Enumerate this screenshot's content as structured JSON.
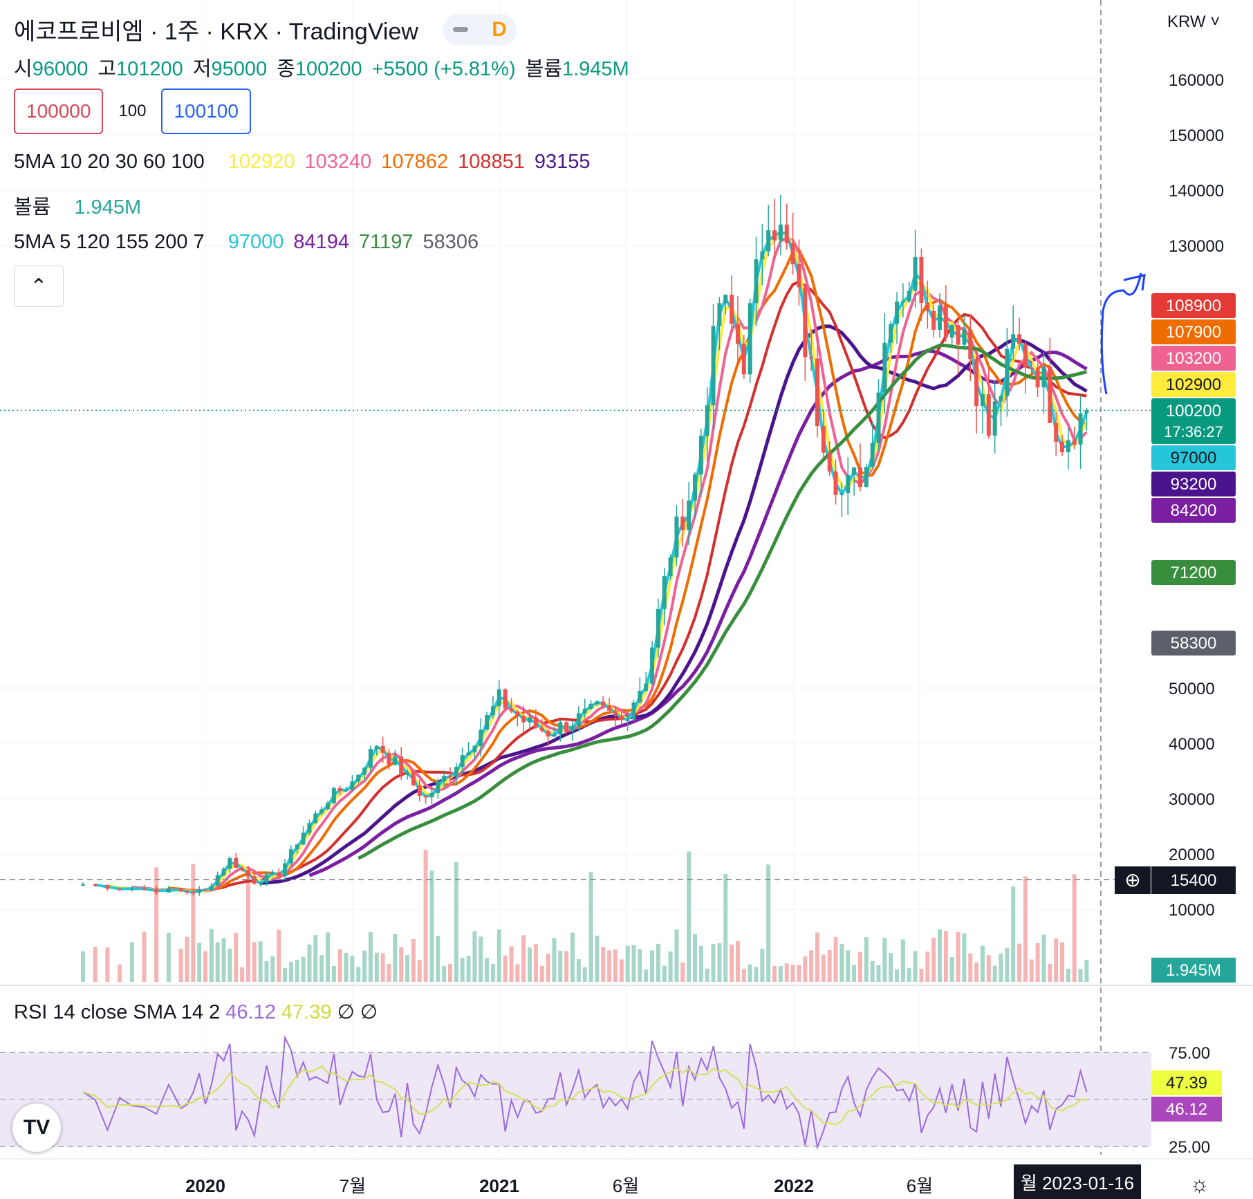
{
  "header": {
    "title": "에코프로비엠 · 1주 · KRX · TradingView",
    "interval_badge": "D",
    "currency": "KRW",
    "ohlc": [
      {
        "label": "시",
        "value": "96000"
      },
      {
        "label": "고",
        "value": "101200"
      },
      {
        "label": "저",
        "value": "95000"
      },
      {
        "label": "종",
        "value": "100200"
      },
      {
        "label": "",
        "value": "+5500 (+5.81%)"
      },
      {
        "label": "볼륨",
        "value": "1.945M"
      }
    ],
    "sell_price": "100000",
    "spread": "100",
    "buy_price": "100100"
  },
  "indicators": {
    "ma1": {
      "name": "5MA 10 20 30 60 100",
      "values": [
        {
          "v": "102920",
          "color": "#ffeb3b"
        },
        {
          "v": "103240",
          "color": "#f06292"
        },
        {
          "v": "107862",
          "color": "#ef6c00"
        },
        {
          "v": "108851",
          "color": "#d32f2f"
        },
        {
          "v": "93155",
          "color": "#4a148c"
        }
      ]
    },
    "vol": {
      "name": "볼륨",
      "values": [
        {
          "v": "1.945M",
          "color": "#26a69a"
        }
      ]
    },
    "ma2": {
      "name": "5MA 5 120 155 200 7",
      "values": [
        {
          "v": "97000",
          "color": "#26c6da"
        },
        {
          "v": "84194",
          "color": "#7b1fa2"
        },
        {
          "v": "71197",
          "color": "#388e3c"
        },
        {
          "v": "58306",
          "color": "#5d606b"
        }
      ]
    }
  },
  "rsi_legend": {
    "name": "RSI 14 close SMA 14 2",
    "rsi": "46.12",
    "sma": "47.39",
    "extra1": "∅",
    "extra2": "∅"
  },
  "toolbar": {
    "collapse_icon": "chevron-up-icon",
    "settings_icon": "gear-icon",
    "logo": "TV"
  },
  "crosshair_label": "월 2023-01-16",
  "chart_data": {
    "type": "candlestick",
    "x_ticks": [
      "2020",
      "7월",
      "2021",
      "6월",
      "2022",
      "6월"
    ],
    "y_ticks": [
      "160000",
      "150000",
      "140000",
      "130000",
      "50000",
      "40000",
      "30000",
      "20000",
      "10000"
    ],
    "ylim": [
      0,
      165000
    ],
    "close_points": [
      {
        "t": "2019-08",
        "v": 14500
      },
      {
        "t": "2019-10",
        "v": 13800
      },
      {
        "t": "2019-12",
        "v": 13200
      },
      {
        "t": "2020-01",
        "v": 13300
      },
      {
        "t": "2020-02",
        "v": 19000
      },
      {
        "t": "2020-03",
        "v": 15000
      },
      {
        "t": "2020-04",
        "v": 16500
      },
      {
        "t": "2020-05",
        "v": 24000
      },
      {
        "t": "2020-06",
        "v": 30000
      },
      {
        "t": "2020-07",
        "v": 33000
      },
      {
        "t": "2020-08",
        "v": 40000
      },
      {
        "t": "2020-09",
        "v": 35000
      },
      {
        "t": "2020-10",
        "v": 30000
      },
      {
        "t": "2020-11",
        "v": 35000
      },
      {
        "t": "2020-12",
        "v": 41000
      },
      {
        "t": "2021-01",
        "v": 48000
      },
      {
        "t": "2021-02",
        "v": 44000
      },
      {
        "t": "2021-03",
        "v": 42000
      },
      {
        "t": "2021-04",
        "v": 44000
      },
      {
        "t": "2021-05",
        "v": 46000
      },
      {
        "t": "2021-06",
        "v": 44000
      },
      {
        "t": "2021-07",
        "v": 52000
      },
      {
        "t": "2021-08",
        "v": 75000
      },
      {
        "t": "2021-09",
        "v": 88000
      },
      {
        "t": "2021-10",
        "v": 120000
      },
      {
        "t": "2021-11",
        "v": 110000
      },
      {
        "t": "2021-12",
        "v": 138000
      },
      {
        "t": "2022-01",
        "v": 125000
      },
      {
        "t": "2022-02",
        "v": 100000
      },
      {
        "t": "2022-03",
        "v": 85000
      },
      {
        "t": "2022-04",
        "v": 90000
      },
      {
        "t": "2022-05",
        "v": 120000
      },
      {
        "t": "2022-06",
        "v": 125000
      },
      {
        "t": "2022-07",
        "v": 118000
      },
      {
        "t": "2022-08",
        "v": 115000
      },
      {
        "t": "2022-09",
        "v": 96000
      },
      {
        "t": "2022-10",
        "v": 112000
      },
      {
        "t": "2022-11",
        "v": 108000
      },
      {
        "t": "2022-12",
        "v": 95000
      },
      {
        "t": "2023-01",
        "v": 100200
      }
    ],
    "price_labels": [
      {
        "v": "108900",
        "color": "#e53935"
      },
      {
        "v": "107900",
        "color": "#ef6c00"
      },
      {
        "v": "103200",
        "color": "#f06292"
      },
      {
        "v": "102900",
        "color": "#ffeb3b",
        "text": "#131722"
      },
      {
        "v": "100200",
        "sub": "17:36:27",
        "color": "#089981"
      },
      {
        "v": "97000",
        "color": "#26c6da",
        "text": "#131722"
      },
      {
        "v": "93200",
        "color": "#4a148c"
      },
      {
        "v": "84200",
        "color": "#7b1fa2"
      },
      {
        "v": "71200",
        "color": "#388e3c"
      },
      {
        "v": "58300",
        "color": "#5d606b"
      }
    ],
    "crosshair_price": "15400",
    "volume_label": "1.945M",
    "rsi": {
      "y_ticks": [
        "75.00",
        "25.00"
      ],
      "rsi_value": "46.12",
      "sma_value": "47.39"
    }
  },
  "colors": {
    "up": "#26a69a",
    "down": "#ef5350",
    "rsi": "#9c6ade",
    "rsi_sma": "#d4e157",
    "rsi_band": "#ede7f6"
  }
}
